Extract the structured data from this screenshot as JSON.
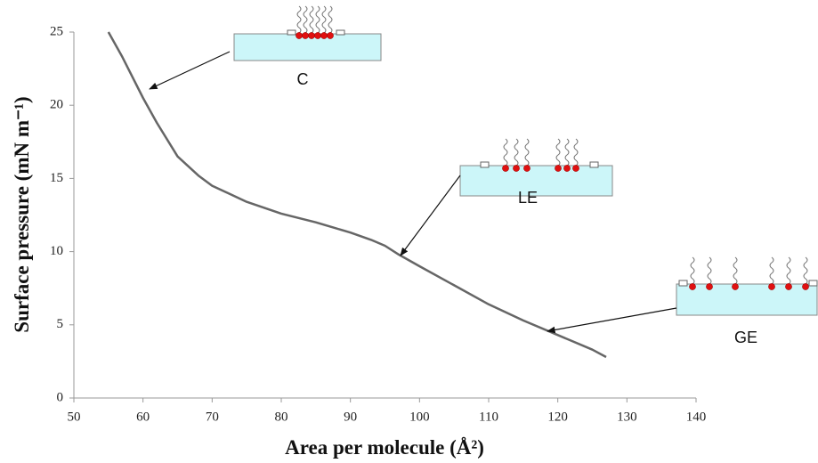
{
  "chart_data": {
    "type": "line",
    "x_label": "Area per molecule (Å²)",
    "y_label": "Surface pressure (mN m⁻¹)",
    "x": [
      55,
      57,
      60,
      62,
      65,
      68,
      70,
      75,
      80,
      85,
      90,
      93,
      95,
      97,
      100,
      105,
      110,
      115,
      120,
      125,
      127
    ],
    "series": [
      {
        "color": "#666666",
        "values": [
          25,
          23.3,
          20.5,
          18.8,
          16.5,
          15.2,
          14.5,
          13.4,
          12.6,
          12.0,
          11.3,
          10.8,
          10.4,
          9.8,
          9.0,
          7.7,
          6.4,
          5.3,
          4.3,
          3.3,
          2.8
        ]
      }
    ],
    "xlim": [
      50,
      140
    ],
    "xticks": [
      50,
      60,
      70,
      80,
      90,
      100,
      110,
      120,
      130,
      140
    ],
    "ylim": [
      0,
      25
    ],
    "yticks": [
      0,
      5,
      10,
      15,
      20,
      25
    ],
    "annotations": [
      {
        "text": "C"
      },
      {
        "text": "LE"
      },
      {
        "text": "GE"
      }
    ]
  }
}
